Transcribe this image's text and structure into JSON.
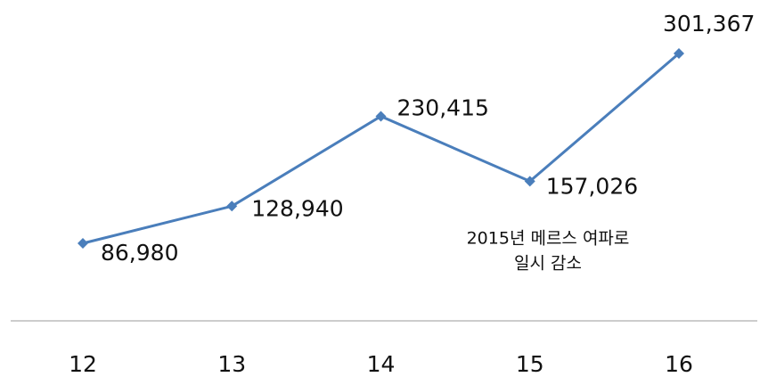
{
  "chart_data": {
    "type": "line",
    "categories": [
      "12",
      "13",
      "14",
      "15",
      "16"
    ],
    "values": [
      86980,
      128940,
      230415,
      157026,
      301367
    ],
    "value_labels": [
      "86,980",
      "128,940",
      "230,415",
      "157,026",
      "301,367"
    ],
    "color": "#4a7ebb",
    "annotation": [
      "2015년 메르스 여파로",
      "일시 감소"
    ]
  }
}
